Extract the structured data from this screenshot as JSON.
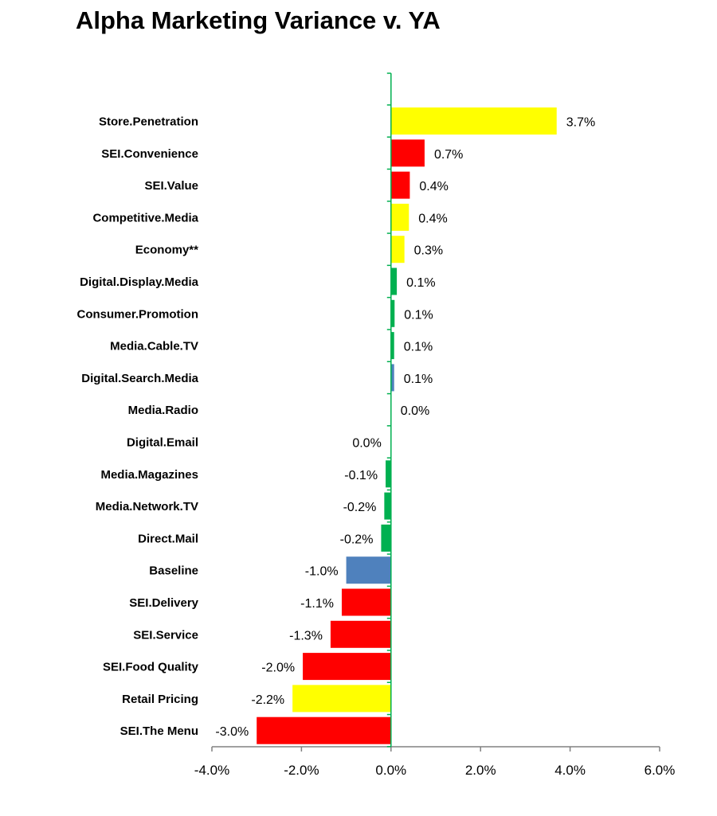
{
  "chart_data": {
    "type": "bar",
    "orientation": "horizontal",
    "title": "Alpha Marketing Variance v. YA",
    "xlim": [
      -4.0,
      6.0
    ],
    "x_ticks": [
      -4.0,
      -2.0,
      0.0,
      2.0,
      4.0,
      6.0
    ],
    "x_tick_labels": [
      "-4.0%",
      "-2.0%",
      "0.0%",
      "2.0%",
      "4.0%",
      "6.0%"
    ],
    "grid": false,
    "legend": "none",
    "bars": [
      {
        "category": "Store.Penetration",
        "value": 3.7,
        "label": "3.7%",
        "color": "#FFFF00"
      },
      {
        "category": "SEI.Convenience",
        "value": 0.75,
        "label": "0.7%",
        "color": "#FF0000"
      },
      {
        "category": "SEI.Value",
        "value": 0.42,
        "label": "0.4%",
        "color": "#FF0000"
      },
      {
        "category": "Competitive.Media",
        "value": 0.4,
        "label": "0.4%",
        "color": "#FFFF00"
      },
      {
        "category": "Economy**",
        "value": 0.3,
        "label": "0.3%",
        "color": "#FFFF00"
      },
      {
        "category": "Digital.Display.Media",
        "value": 0.13,
        "label": "0.1%",
        "color": "#00B050"
      },
      {
        "category": "Consumer.Promotion",
        "value": 0.08,
        "label": "0.1%",
        "color": "#00B050"
      },
      {
        "category": "Media.Cable.TV",
        "value": 0.07,
        "label": "0.1%",
        "color": "#00B050"
      },
      {
        "category": "Digital.Search.Media",
        "value": 0.07,
        "label": "0.1%",
        "color": "#4F81BD"
      },
      {
        "category": "Media.Radio",
        "value": 0.0,
        "label": "0.0%",
        "color": "#00B050"
      },
      {
        "category": "Digital.Email",
        "value": 0.0,
        "label": "0.0%",
        "color": "#00B050"
      },
      {
        "category": "Media.Magazines",
        "value": -0.12,
        "label": "-0.1%",
        "color": "#00B050"
      },
      {
        "category": "Media.Network.TV",
        "value": -0.15,
        "label": "-0.2%",
        "color": "#00B050"
      },
      {
        "category": "Direct.Mail",
        "value": -0.22,
        "label": "-0.2%",
        "color": "#00B050"
      },
      {
        "category": "Baseline",
        "value": -1.0,
        "label": "-1.0%",
        "color": "#4F81BD"
      },
      {
        "category": "SEI.Delivery",
        "value": -1.1,
        "label": "-1.1%",
        "color": "#FF0000"
      },
      {
        "category": "SEI.Service",
        "value": -1.35,
        "label": "-1.3%",
        "color": "#FF0000"
      },
      {
        "category": "SEI.Food Quality",
        "value": -1.97,
        "label": "-2.0%",
        "color": "#FF0000"
      },
      {
        "category": "Retail Pricing",
        "value": -2.2,
        "label": "-2.2%",
        "color": "#FFFF00"
      },
      {
        "category": "SEI.The Menu",
        "value": -3.0,
        "label": "-3.0%",
        "color": "#FF0000"
      }
    ],
    "zero_axis_color": "#00B050",
    "x_axis_color": "#808080"
  }
}
